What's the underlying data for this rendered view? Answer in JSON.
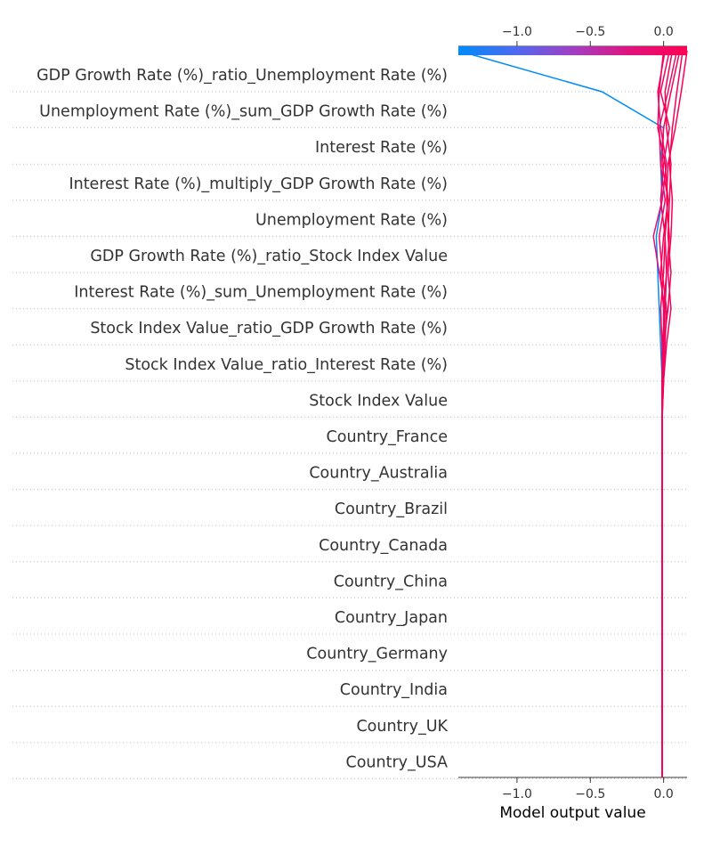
{
  "chart_data": {
    "type": "line",
    "xlabel": "Model output value",
    "xlim": [
      -1.4,
      0.16
    ],
    "xticks": [
      -1.0,
      -0.5,
      0.0
    ],
    "xtick_labels": [
      "−1.0",
      "−0.5",
      "0.0"
    ],
    "colormap": [
      "#008bfb",
      "#4e6af0",
      "#a03fc4",
      "#e0137c",
      "#ff0052"
    ],
    "features": [
      "GDP Growth Rate (%)_ratio_Unemployment Rate (%)",
      "Unemployment Rate (%)_sum_GDP Growth Rate (%)",
      "Interest Rate (%)",
      "Interest Rate (%)_multiply_GDP Growth Rate (%)",
      "Unemployment Rate (%)",
      "GDP Growth Rate (%)_ratio_Stock Index Value",
      "Interest Rate (%)_sum_Unemployment Rate (%)",
      "Stock Index Value_ratio_GDP Growth Rate (%)",
      "Stock Index Value_ratio_Interest Rate (%)",
      "Stock Index Value",
      "Country_France",
      "Country_Australia",
      "Country_Brazil",
      "Country_Canada",
      "Country_China",
      "Country_Japan",
      "Country_Germany",
      "Country_India",
      "Country_UK",
      "Country_USA"
    ],
    "base_value": -0.01,
    "series": [
      {
        "color": "#008bfb",
        "values": [
          -1.4,
          -0.42,
          0.0,
          -0.02,
          -0.01,
          -0.05,
          -0.04,
          -0.03,
          -0.02,
          -0.01,
          -0.01,
          -0.01,
          -0.01,
          -0.01,
          -0.01,
          -0.01,
          -0.01,
          -0.01,
          -0.01,
          -0.01,
          -0.01
        ]
      },
      {
        "color": "#f5005c",
        "values": [
          0.13,
          0.09,
          0.06,
          0.04,
          0.06,
          0.05,
          0.03,
          0.05,
          0.02,
          0.0,
          -0.01,
          -0.01,
          -0.01,
          -0.01,
          -0.01,
          -0.01,
          -0.01,
          -0.01,
          -0.01,
          -0.01,
          -0.01
        ]
      },
      {
        "color": "#ff0052",
        "values": [
          0.16,
          0.12,
          0.08,
          0.03,
          0.02,
          0.04,
          0.02,
          0.0,
          0.01,
          -0.01,
          -0.01,
          -0.01,
          -0.01,
          -0.01,
          -0.01,
          -0.01,
          -0.01,
          -0.01,
          -0.01,
          -0.01,
          -0.01
        ]
      },
      {
        "color": "#ea0a6b",
        "values": [
          0.09,
          0.03,
          -0.03,
          -0.02,
          0.01,
          -0.03,
          -0.01,
          0.02,
          0.01,
          0.0,
          -0.01,
          -0.01,
          -0.01,
          -0.01,
          -0.01,
          -0.01,
          -0.01,
          -0.01,
          -0.01,
          -0.01,
          -0.01
        ]
      },
      {
        "color": "#f7004e",
        "values": [
          0.06,
          0.01,
          0.02,
          0.05,
          0.04,
          0.03,
          0.05,
          0.03,
          0.0,
          -0.01,
          -0.01,
          -0.01,
          -0.01,
          -0.01,
          -0.01,
          -0.01,
          -0.01,
          -0.01,
          -0.01,
          -0.01,
          -0.01
        ]
      },
      {
        "color": "#e40e76",
        "values": [
          0.01,
          -0.04,
          -0.02,
          0.02,
          -0.01,
          -0.07,
          -0.03,
          0.01,
          0.0,
          -0.01,
          -0.01,
          -0.01,
          -0.01,
          -0.01,
          -0.01,
          -0.01,
          -0.01,
          -0.01,
          -0.01,
          -0.01,
          -0.01
        ]
      },
      {
        "color": "#ff0050",
        "values": [
          0.11,
          0.05,
          0.0,
          -0.01,
          0.03,
          0.01,
          0.0,
          -0.02,
          -0.01,
          -0.01,
          -0.01,
          -0.01,
          -0.01,
          -0.01,
          -0.01,
          -0.01,
          -0.01,
          -0.01,
          -0.01,
          -0.01,
          -0.01
        ]
      },
      {
        "color": "#f40060",
        "values": [
          0.04,
          -0.02,
          0.04,
          0.0,
          -0.02,
          0.01,
          0.02,
          0.01,
          -0.01,
          0.0,
          -0.01,
          -0.01,
          -0.01,
          -0.01,
          -0.01,
          -0.01,
          -0.01,
          -0.01,
          -0.01,
          -0.01,
          -0.01
        ]
      },
      {
        "color": "#fb0055",
        "values": [
          0.0,
          -0.03,
          -0.04,
          0.01,
          0.03,
          0.0,
          -0.02,
          0.0,
          0.0,
          -0.01,
          -0.01,
          -0.01,
          -0.01,
          -0.01,
          -0.01,
          -0.01,
          -0.01,
          -0.01,
          -0.01,
          -0.01,
          -0.01
        ]
      }
    ]
  }
}
